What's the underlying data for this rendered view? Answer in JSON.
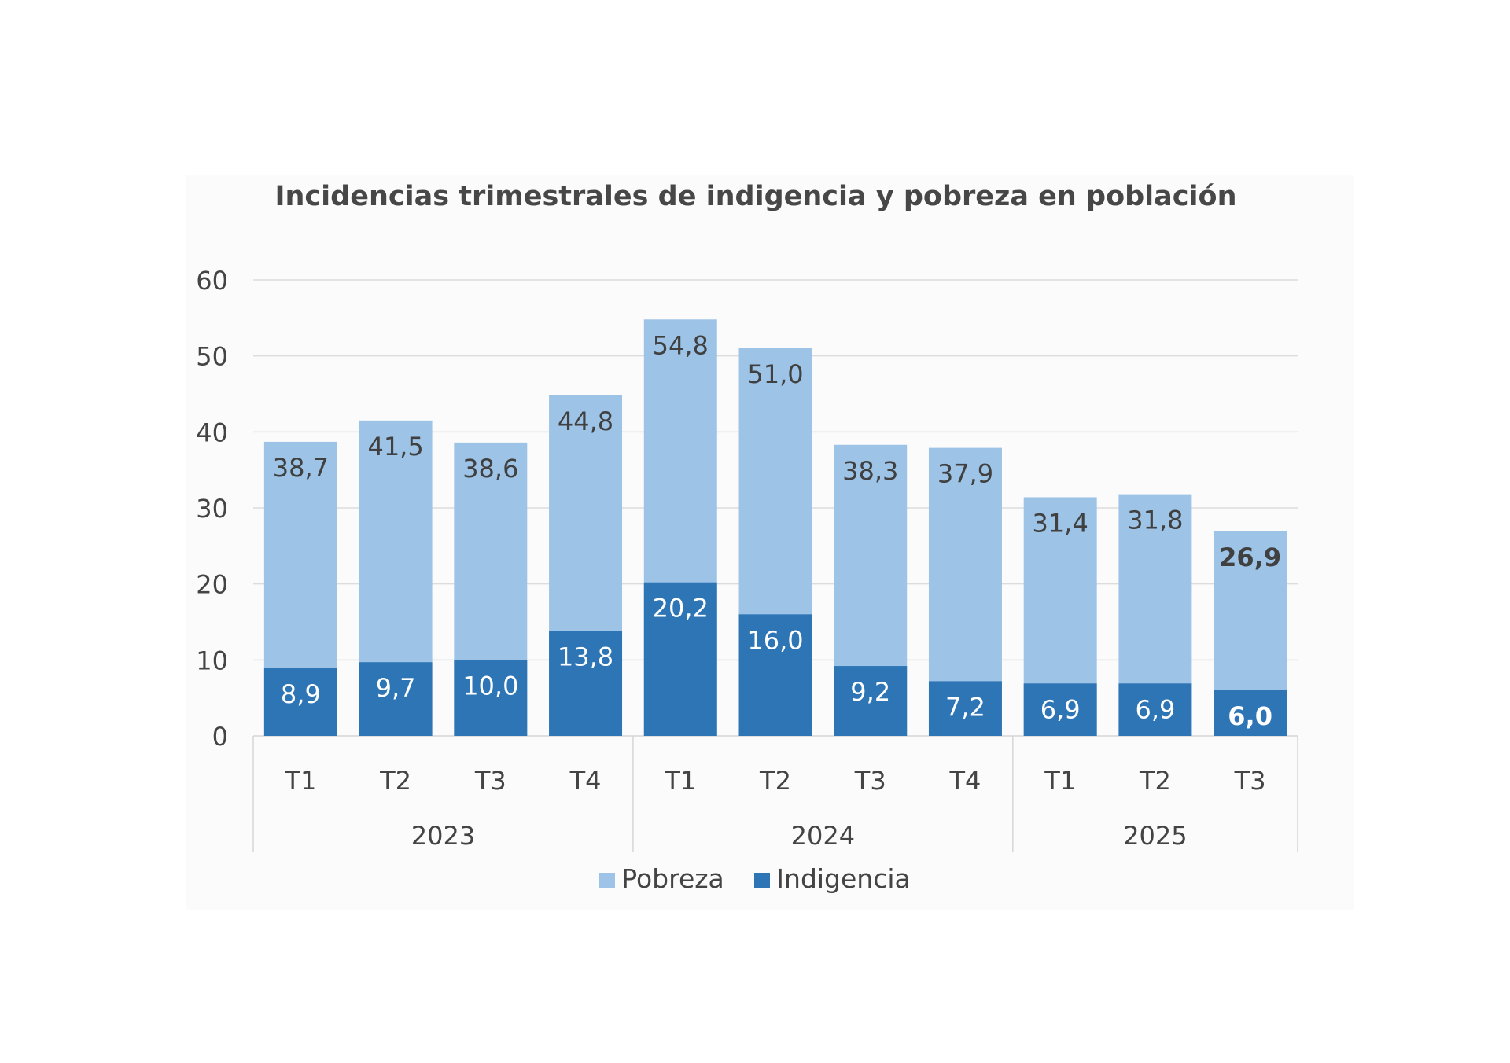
{
  "chart_data": {
    "type": "bar",
    "stacked": "overlay",
    "title": "Incidencias trimestrales de indigencia y pobreza en población",
    "categories": [
      "T1",
      "T2",
      "T3",
      "T4",
      "T1",
      "T2",
      "T3",
      "T4",
      "T1",
      "T2",
      "T3"
    ],
    "groups": [
      {
        "label": "2023",
        "count": 4
      },
      {
        "label": "2024",
        "count": 4
      },
      {
        "label": "2025",
        "count": 3
      }
    ],
    "series": [
      {
        "name": "Pobreza",
        "color": "#9dc3e6",
        "label_color": "#404040",
        "values": [
          38.7,
          41.5,
          38.6,
          44.8,
          54.8,
          51.0,
          38.3,
          37.9,
          31.4,
          31.8,
          26.9
        ],
        "labels": [
          "38,7",
          "41,5",
          "38,6",
          "44,8",
          "54,8",
          "51,0",
          "38,3",
          "37,9",
          "31,4",
          "31,8",
          "26,9"
        ]
      },
      {
        "name": "Indigencia",
        "color": "#2e75b6",
        "label_color": "#ffffff",
        "values": [
          8.9,
          9.7,
          10.0,
          13.8,
          20.2,
          16.0,
          9.2,
          7.2,
          6.9,
          6.9,
          6.0
        ],
        "labels": [
          "8,9",
          "9,7",
          "10,0",
          "13,8",
          "20,2",
          "16,0",
          "9,2",
          "7,2",
          "6,9",
          "6,9",
          "6,0"
        ]
      }
    ],
    "bold_last_labels": true,
    "ylim": [
      0,
      60
    ],
    "yticks": [
      "0",
      "10",
      "20",
      "30",
      "40",
      "50",
      "60"
    ],
    "grid": true,
    "legend": "bottom",
    "xlabel": "",
    "ylabel": ""
  }
}
